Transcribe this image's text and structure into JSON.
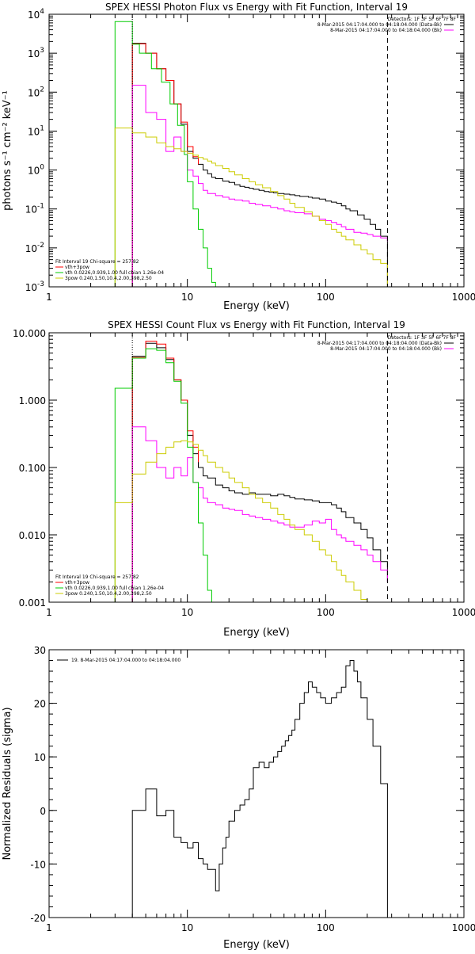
{
  "chart_data": [
    {
      "type": "line",
      "title": "SPEX HESSI Photon Flux vs Energy with Fit Function, Interval 19",
      "xlabel": "Energy (keV)",
      "ylabel": "photons s⁻¹ cm⁻² keV⁻¹",
      "xscale": "log",
      "yscale": "log",
      "xlim": [
        1,
        1000
      ],
      "ylim": [
        0.001,
        10000
      ],
      "x_ticks": [
        {
          "v": 1,
          "label": "1"
        },
        {
          "v": 10,
          "label": "10"
        },
        {
          "v": 100,
          "label": "100"
        },
        {
          "v": 1000,
          "label": "1000"
        }
      ],
      "y_ticks": [
        {
          "v": 0.001,
          "base": "10",
          "exp": "-3"
        },
        {
          "v": 0.01,
          "base": "10",
          "exp": "-2"
        },
        {
          "v": 0.1,
          "base": "10",
          "exp": "-1"
        },
        {
          "v": 1,
          "base": "10",
          "exp": "0"
        },
        {
          "v": 10,
          "base": "10",
          "exp": "1"
        },
        {
          "v": 100,
          "base": "10",
          "exp": "2"
        },
        {
          "v": 1000,
          "base": "10",
          "exp": "3"
        },
        {
          "v": 10000,
          "base": "10",
          "exp": "4"
        }
      ],
      "legend_topright": {
        "lines": [
          {
            "text": "Detectors: 1F 3F 5F 6F 7F 8F",
            "color": ""
          },
          {
            "text": "8-Mar-2015 04:17:04.000 to 04:18:04.000 (Data-Bk)",
            "color": "#000000"
          },
          {
            "text": "8-Mar-2015 04:17:04.000 to 04:18:04.000 (Bk)",
            "color": "#ff00ff"
          }
        ]
      },
      "legend_bottomleft": {
        "lines": [
          {
            "text": "Fit Interval 19   Chi-square = 257.82",
            "color": ""
          },
          {
            "text": "vth+3pow",
            "color": "#ff0000"
          },
          {
            "text": "vth 0.0226,0.939,1.00  full chian 1.26e-04",
            "color": "#00cc00"
          },
          {
            "text": "3pow 0.240,1.50,10.4,2.00,398,2.50",
            "color": "#cccc00"
          }
        ]
      },
      "vlines": [
        {
          "x": 4,
          "style": "dotted"
        },
        {
          "x": 280,
          "style": "dashed"
        }
      ],
      "series": [
        {
          "color": "#000000",
          "bin_edges": [
            4,
            4.5,
            5,
            5.5,
            6,
            6.5,
            7,
            7.5,
            8,
            8.5,
            9,
            9.5,
            10,
            11,
            12,
            13,
            14,
            15,
            16,
            18,
            20,
            22,
            24,
            26,
            28,
            30,
            33,
            36,
            39,
            42,
            45,
            50,
            55,
            60,
            65,
            70,
            75,
            80,
            90,
            100,
            110,
            120,
            130,
            140,
            150,
            170,
            190,
            210,
            230,
            250,
            280
          ],
          "values": [
            1800,
            1800,
            1000,
            1000,
            400,
            400,
            200,
            200,
            50,
            50,
            15,
            15,
            3,
            2,
            1.4,
            1.0,
            0.8,
            0.65,
            0.6,
            0.52,
            0.48,
            0.42,
            0.38,
            0.36,
            0.34,
            0.32,
            0.3,
            0.28,
            0.27,
            0.26,
            0.25,
            0.24,
            0.23,
            0.22,
            0.21,
            0.21,
            0.2,
            0.19,
            0.18,
            0.16,
            0.15,
            0.14,
            0.12,
            0.1,
            0.09,
            0.07,
            0.055,
            0.04,
            0.03,
            0.02
          ]
        },
        {
          "color": "#ff0000",
          "bin_edges": [
            4,
            4.5,
            5,
            5.5,
            6,
            6.5,
            7,
            7.5,
            8,
            8.5,
            9,
            9.5,
            10,
            11,
            12
          ],
          "values": [
            1750,
            1750,
            1000,
            1000,
            400,
            400,
            200,
            200,
            50,
            50,
            17,
            17,
            4,
            2.2,
            1.4
          ]
        },
        {
          "color": "#ff00ff",
          "bin_edges": [
            4,
            4.5,
            5,
            5.5,
            6,
            6.5,
            7,
            7.5,
            8,
            8.5,
            9,
            9.5,
            10,
            11,
            12,
            13,
            14,
            16,
            18,
            20,
            22,
            25,
            28,
            31,
            35,
            40,
            45,
            50,
            55,
            60,
            70,
            80,
            90,
            100,
            110,
            120,
            130,
            140,
            160,
            180,
            200,
            220,
            250,
            280
          ],
          "values": [
            150,
            150,
            30,
            30,
            20,
            20,
            3,
            3,
            7,
            7,
            3,
            3,
            1.0,
            0.7,
            0.45,
            0.3,
            0.25,
            0.22,
            0.2,
            0.18,
            0.17,
            0.16,
            0.14,
            0.13,
            0.12,
            0.11,
            0.1,
            0.09,
            0.085,
            0.08,
            0.075,
            0.065,
            0.055,
            0.05,
            0.045,
            0.04,
            0.035,
            0.03,
            0.025,
            0.024,
            0.022,
            0.02,
            0.018,
            0.015
          ]
        },
        {
          "color": "#00cc00",
          "bin_edges": [
            3,
            4,
            4.5,
            5,
            5.5,
            6,
            6.5,
            7,
            7.5,
            8,
            8.5,
            9,
            9.5,
            10,
            11,
            12,
            13,
            14,
            15,
            16
          ],
          "values": [
            6500,
            1700,
            1000,
            1000,
            400,
            400,
            180,
            180,
            50,
            50,
            14,
            14,
            2.5,
            0.5,
            0.1,
            0.03,
            0.01,
            0.003,
            0.0013
          ]
        },
        {
          "color": "#cccc00",
          "bin_edges": [
            3,
            4,
            5,
            6,
            7,
            8,
            9,
            10,
            11,
            12,
            13,
            14,
            15,
            16,
            18,
            20,
            22,
            25,
            28,
            31,
            35,
            40,
            45,
            50,
            55,
            60,
            70,
            80,
            90,
            100,
            110,
            120,
            130,
            140,
            160,
            180,
            200,
            220,
            250,
            280
          ],
          "values": [
            12,
            9,
            7,
            5,
            4,
            3.5,
            3,
            2.7,
            2.4,
            2.1,
            1.9,
            1.7,
            1.5,
            1.3,
            1.1,
            0.9,
            0.75,
            0.6,
            0.5,
            0.42,
            0.35,
            0.28,
            0.22,
            0.18,
            0.14,
            0.11,
            0.085,
            0.065,
            0.05,
            0.04,
            0.03,
            0.025,
            0.02,
            0.016,
            0.012,
            0.009,
            0.007,
            0.005,
            0.004
          ]
        }
      ]
    },
    {
      "type": "line",
      "title": "SPEX HESSI Count Flux vs Energy with Fit Function, Interval 19",
      "xlabel": "Energy (keV)",
      "ylabel": "",
      "xscale": "log",
      "yscale": "log",
      "xlim": [
        1,
        1000
      ],
      "ylim": [
        0.001,
        10
      ],
      "x_ticks": [
        {
          "v": 1,
          "label": "1"
        },
        {
          "v": 10,
          "label": "10"
        },
        {
          "v": 100,
          "label": "100"
        },
        {
          "v": 1000,
          "label": "1000"
        }
      ],
      "y_ticks": [
        {
          "v": 0.001,
          "label": "0.001"
        },
        {
          "v": 0.01,
          "label": "0.010"
        },
        {
          "v": 0.1,
          "label": "0.100"
        },
        {
          "v": 1,
          "label": "1.000"
        },
        {
          "v": 10,
          "label": "10.000"
        }
      ],
      "legend_topright": {
        "lines": [
          {
            "text": "Detectors: 1F 3F 5F 6F 7F 8F",
            "color": ""
          },
          {
            "text": "8-Mar-2015 04:17:04.000 to 04:18:04.000 (Data-Bk)",
            "color": "#000000"
          },
          {
            "text": "8-Mar-2015 04:17:04.000 to 04:18:04.000 (Bk)",
            "color": "#ff00ff"
          }
        ]
      },
      "legend_bottomleft": {
        "lines": [
          {
            "text": "Fit Interval 19   Chi-square = 257.82",
            "color": ""
          },
          {
            "text": "vth+3pow",
            "color": "#ff0000"
          },
          {
            "text": "vth 0.0226,0.939,1.00  full chian 1.26e-04",
            "color": "#00cc00"
          },
          {
            "text": "3pow 0.240,1.50,10.4,2.00,398,2.50",
            "color": "#cccc00"
          }
        ]
      },
      "vlines": [
        {
          "x": 4,
          "style": "dotted"
        },
        {
          "x": 280,
          "style": "dashed"
        }
      ],
      "series": [
        {
          "color": "#000000",
          "bin_edges": [
            4,
            4.5,
            5,
            5.5,
            6,
            6.5,
            7,
            7.5,
            8,
            8.5,
            9,
            9.5,
            10,
            11,
            12,
            13,
            14,
            16,
            18,
            20,
            22,
            25,
            28,
            31,
            35,
            40,
            45,
            50,
            55,
            60,
            70,
            80,
            90,
            100,
            110,
            120,
            130,
            140,
            160,
            180,
            200,
            220,
            250,
            280
          ],
          "values": [
            4.5,
            4.5,
            7.0,
            7.0,
            6.0,
            6.0,
            4.0,
            4.0,
            2.0,
            2.0,
            1.0,
            1.0,
            0.3,
            0.16,
            0.1,
            0.075,
            0.07,
            0.055,
            0.05,
            0.045,
            0.042,
            0.04,
            0.042,
            0.04,
            0.04,
            0.038,
            0.04,
            0.038,
            0.036,
            0.034,
            0.033,
            0.032,
            0.03,
            0.03,
            0.028,
            0.025,
            0.022,
            0.018,
            0.015,
            0.012,
            0.009,
            0.006,
            0.004,
            0.002
          ]
        },
        {
          "color": "#ff0000",
          "bin_edges": [
            4,
            4.5,
            5,
            5.5,
            6,
            6.5,
            7,
            7.5,
            8,
            8.5,
            9,
            9.5,
            10,
            11,
            12
          ],
          "values": [
            4.3,
            4.3,
            7.5,
            7.5,
            6.8,
            6.8,
            4.2,
            4.2,
            2.0,
            2.0,
            1.0,
            1.0,
            0.35,
            0.2,
            0.12
          ]
        },
        {
          "color": "#ff00ff",
          "bin_edges": [
            4,
            4.5,
            5,
            5.5,
            6,
            6.5,
            7,
            7.5,
            8,
            8.5,
            9,
            9.5,
            10,
            11,
            12,
            13,
            14,
            16,
            18,
            20,
            22,
            25,
            28,
            31,
            35,
            40,
            45,
            50,
            55,
            60,
            70,
            80,
            90,
            100,
            110,
            120,
            130,
            140,
            160,
            180,
            200,
            220,
            250,
            280
          ],
          "values": [
            0.4,
            0.4,
            0.25,
            0.25,
            0.1,
            0.1,
            0.07,
            0.07,
            0.1,
            0.1,
            0.075,
            0.075,
            0.14,
            0.06,
            0.05,
            0.035,
            0.03,
            0.028,
            0.025,
            0.024,
            0.023,
            0.02,
            0.019,
            0.018,
            0.017,
            0.016,
            0.015,
            0.014,
            0.013,
            0.013,
            0.014,
            0.016,
            0.015,
            0.017,
            0.012,
            0.01,
            0.009,
            0.008,
            0.007,
            0.006,
            0.005,
            0.004,
            0.003,
            0.002
          ]
        },
        {
          "color": "#00cc00",
          "bin_edges": [
            3,
            4,
            4.5,
            5,
            5.5,
            6,
            6.5,
            7,
            7.5,
            8,
            8.5,
            9,
            9.5,
            10,
            11,
            12,
            13,
            14,
            15
          ],
          "values": [
            1.5,
            4.2,
            4.2,
            5.8,
            5.8,
            5.5,
            5.5,
            3.6,
            3.6,
            1.9,
            1.9,
            0.9,
            0.9,
            0.2,
            0.06,
            0.015,
            0.005,
            0.0015
          ]
        },
        {
          "color": "#cccc00",
          "bin_edges": [
            3,
            4,
            5,
            6,
            7,
            8,
            9,
            10,
            11,
            12,
            13,
            14,
            16,
            18,
            20,
            22,
            25,
            28,
            31,
            35,
            40,
            45,
            50,
            55,
            60,
            70,
            80,
            90,
            100,
            110,
            120,
            130,
            140,
            160,
            180,
            200
          ],
          "values": [
            0.03,
            0.08,
            0.12,
            0.16,
            0.2,
            0.24,
            0.25,
            0.24,
            0.22,
            0.18,
            0.15,
            0.12,
            0.1,
            0.085,
            0.07,
            0.06,
            0.05,
            0.04,
            0.035,
            0.03,
            0.025,
            0.02,
            0.017,
            0.014,
            0.012,
            0.01,
            0.008,
            0.006,
            0.005,
            0.004,
            0.003,
            0.0025,
            0.002,
            0.0015,
            0.0011
          ]
        }
      ]
    },
    {
      "type": "line",
      "title": "",
      "xlabel": "Energy (keV)",
      "ylabel": "Normalized Residuals (sigma)",
      "xscale": "log",
      "yscale": "linear",
      "xlim": [
        1,
        1000
      ],
      "ylim": [
        -20,
        30
      ],
      "x_ticks": [
        {
          "v": 1,
          "label": "1"
        },
        {
          "v": 10,
          "label": "10"
        },
        {
          "v": 100,
          "label": "100"
        },
        {
          "v": 1000,
          "label": "1000"
        }
      ],
      "y_ticks": [
        {
          "v": -20,
          "label": "-20"
        },
        {
          "v": -10,
          "label": "-10"
        },
        {
          "v": 0,
          "label": "0"
        },
        {
          "v": 10,
          "label": "10"
        },
        {
          "v": 20,
          "label": "20"
        },
        {
          "v": 30,
          "label": "30"
        }
      ],
      "legend_topleft": {
        "lines": [
          {
            "text": "19.  8-Mar-2015 04:17:04.000 to 04:18:04.000",
            "color": "#000000"
          }
        ]
      },
      "vlines": [],
      "series": [
        {
          "color": "#000000",
          "bin_edges": [
            4,
            4.5,
            5,
            5.5,
            6,
            6.5,
            7,
            7.5,
            8,
            8.5,
            9,
            9.5,
            10,
            11,
            12,
            13,
            14,
            15,
            16,
            17,
            18,
            19,
            20,
            22,
            24,
            26,
            28,
            30,
            33,
            36,
            39,
            42,
            45,
            48,
            51,
            54,
            57,
            60,
            65,
            70,
            75,
            80,
            86,
            92,
            100,
            110,
            120,
            130,
            140,
            150,
            160,
            170,
            180,
            200,
            220,
            250,
            265,
            280
          ],
          "values": [
            0,
            0,
            4,
            4,
            -1,
            -1,
            0,
            0,
            -5,
            -5,
            -6,
            -6,
            -7,
            -6,
            -9,
            -10,
            -11,
            -11,
            -15,
            -10,
            -7,
            -5,
            -2,
            0,
            1,
            2,
            4,
            8,
            9,
            8,
            9,
            10,
            11,
            12,
            13,
            14,
            15,
            17,
            20,
            22,
            24,
            23,
            22,
            21,
            20,
            21,
            22,
            23,
            27,
            28,
            26,
            24,
            21,
            17,
            12,
            5,
            5
          ]
        }
      ]
    }
  ]
}
